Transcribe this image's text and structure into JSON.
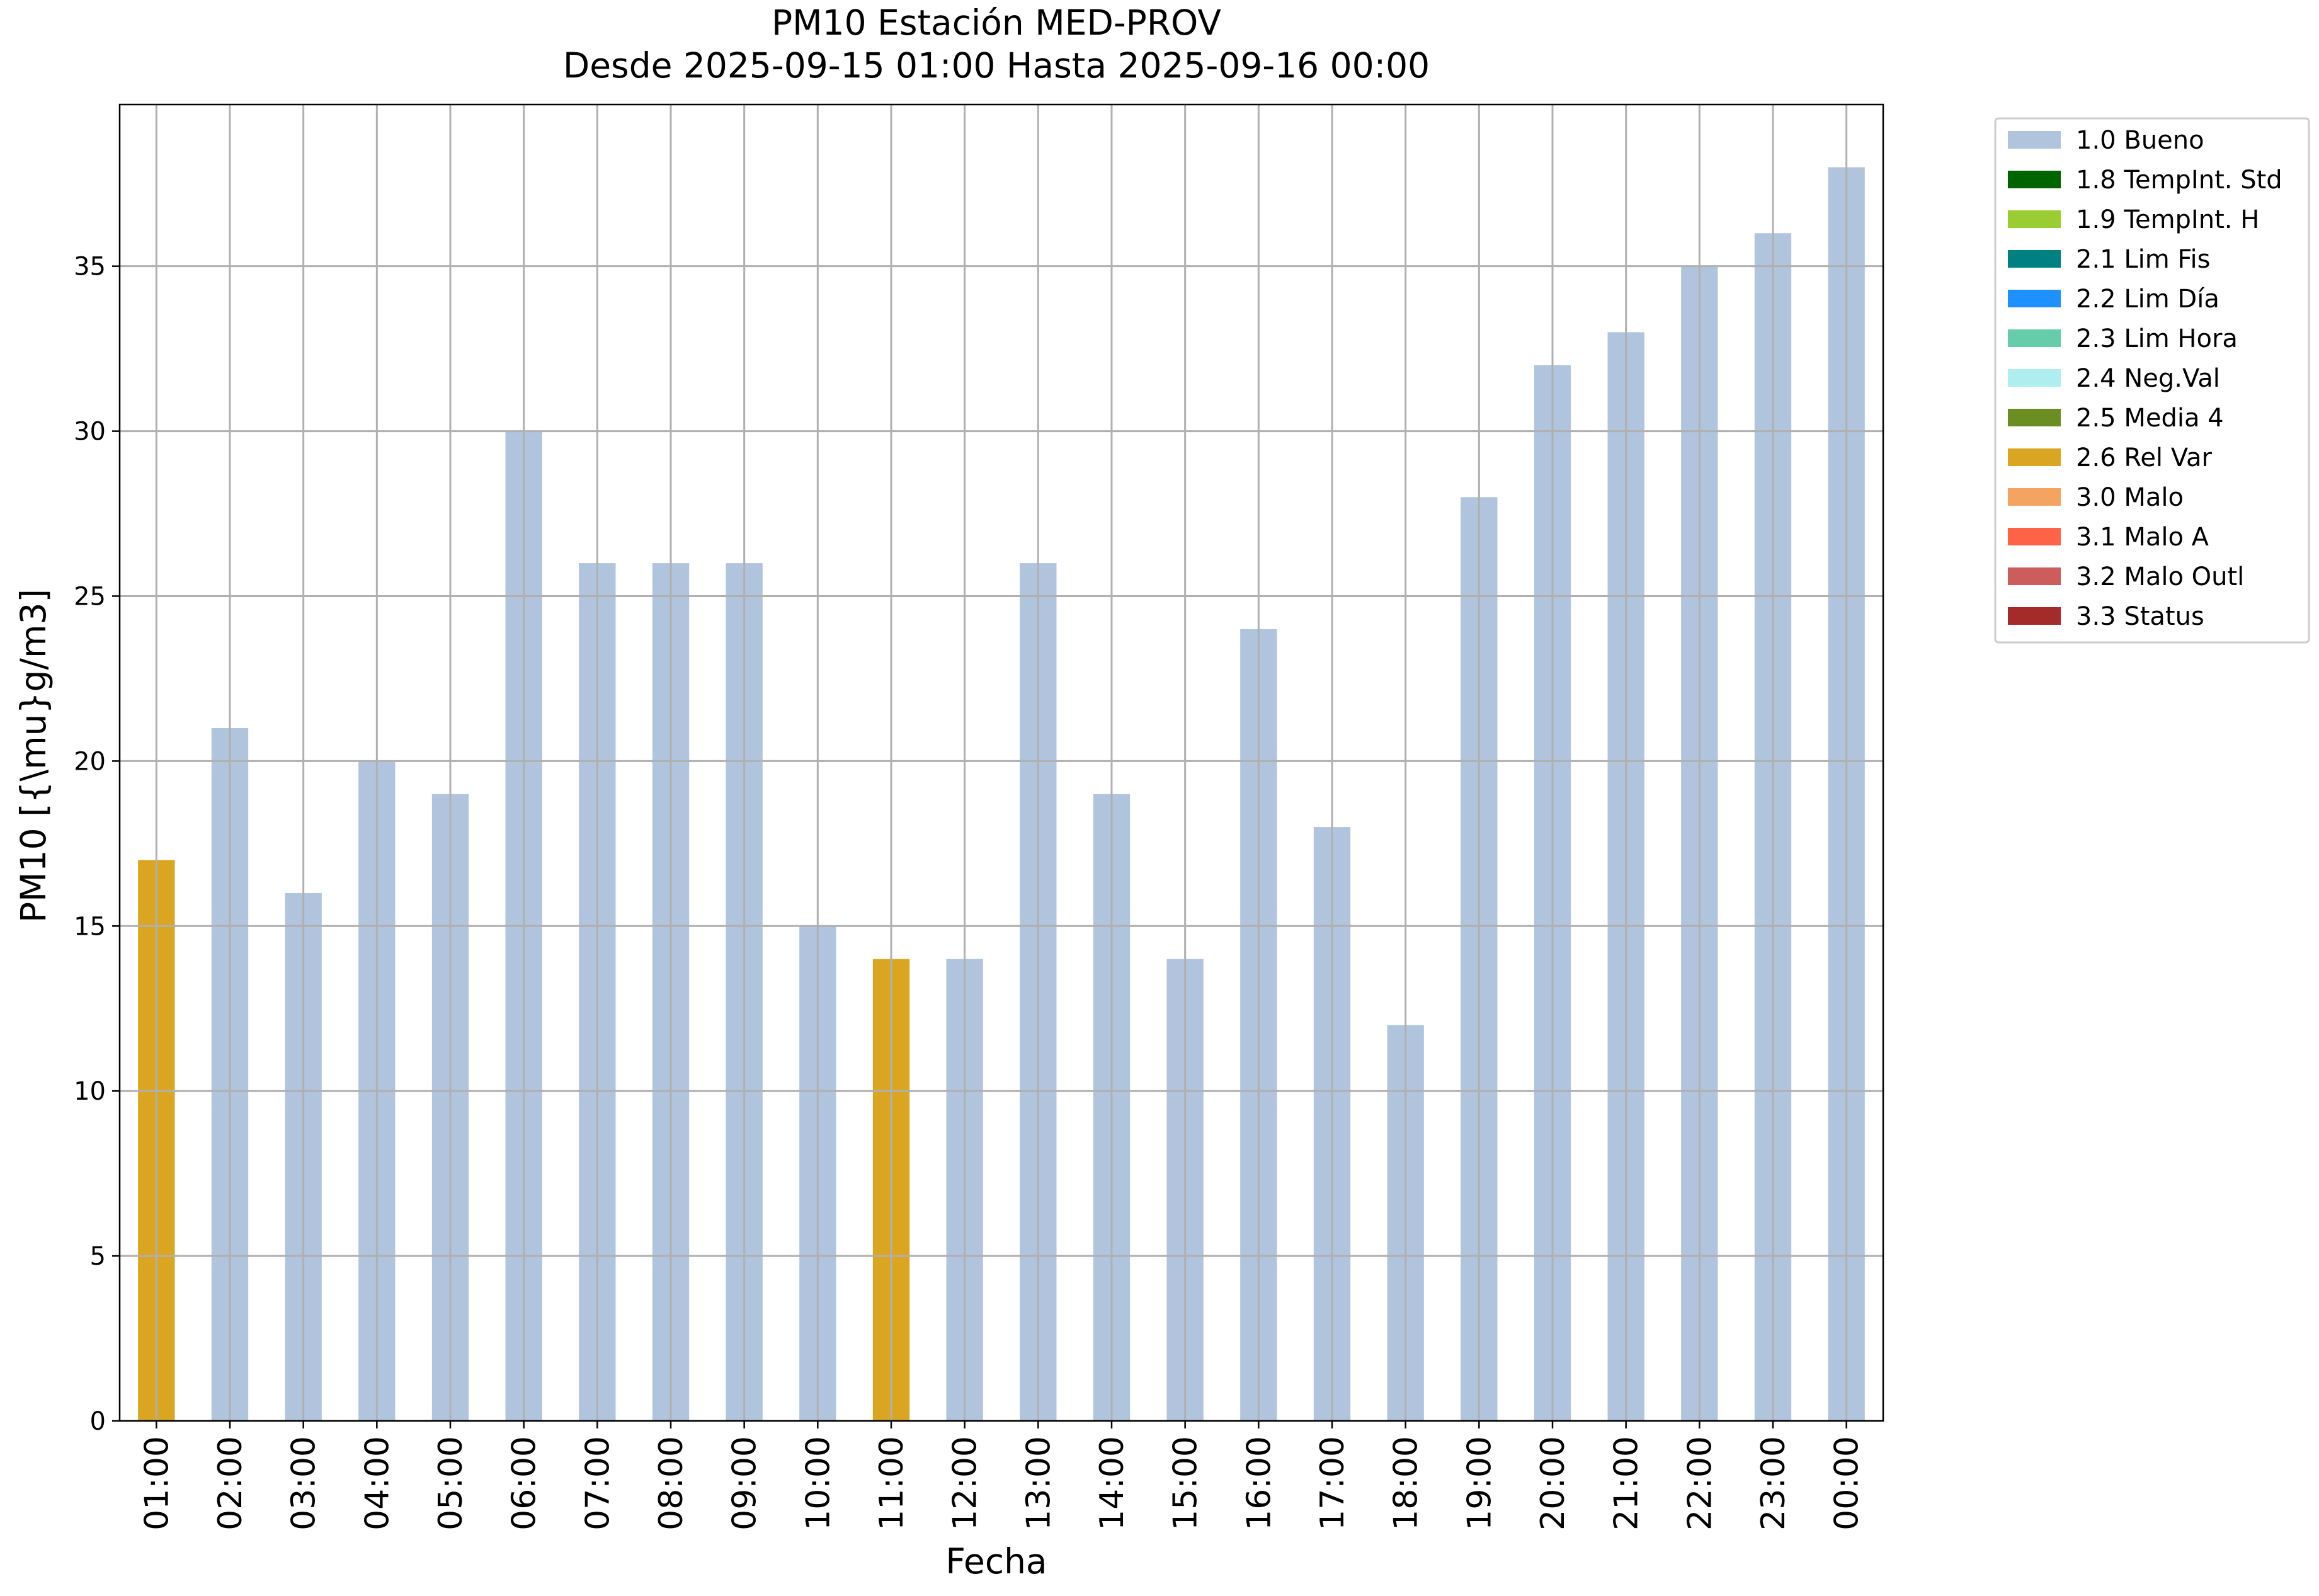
{
  "chart_data": {
    "type": "bar",
    "title": "PM10 Estación MED-PROV",
    "subtitle": "Desde 2025-09-15 01:00 Hasta 2025-09-16 00:00",
    "xlabel": "Fecha",
    "ylabel": "PM10 [{\\mu}g/m3]",
    "ylim": [
      0,
      39.9
    ],
    "yticks": [
      0,
      5,
      10,
      15,
      20,
      25,
      30,
      35
    ],
    "grid": true,
    "legend_position": "outside-top-right",
    "categories": [
      "01:00",
      "02:00",
      "03:00",
      "04:00",
      "05:00",
      "06:00",
      "07:00",
      "08:00",
      "09:00",
      "10:00",
      "11:00",
      "12:00",
      "13:00",
      "14:00",
      "15:00",
      "16:00",
      "17:00",
      "18:00",
      "19:00",
      "20:00",
      "21:00",
      "22:00",
      "23:00",
      "00:00"
    ],
    "values": [
      17,
      21,
      16,
      20,
      19,
      30,
      26,
      26,
      26,
      15,
      14,
      14,
      26,
      19,
      14,
      24,
      18,
      12,
      28,
      32,
      33,
      35,
      36,
      38
    ],
    "flags": [
      "2.6 Rel Var",
      "1.0 Bueno",
      "1.0 Bueno",
      "1.0 Bueno",
      "1.0 Bueno",
      "1.0 Bueno",
      "1.0 Bueno",
      "1.0 Bueno",
      "1.0 Bueno",
      "1.0 Bueno",
      "2.6 Rel Var",
      "1.0 Bueno",
      "1.0 Bueno",
      "1.0 Bueno",
      "1.0 Bueno",
      "1.0 Bueno",
      "1.0 Bueno",
      "1.0 Bueno",
      "1.0 Bueno",
      "1.0 Bueno",
      "1.0 Bueno",
      "1.0 Bueno",
      "1.0 Bueno",
      "1.0 Bueno"
    ],
    "legend": [
      {
        "label": "1.0 Bueno",
        "color": "#b0c4de"
      },
      {
        "label": "1.8 TempInt. Std",
        "color": "#006400"
      },
      {
        "label": "1.9 TempInt. H",
        "color": "#9acd32"
      },
      {
        "label": "2.1 Lim Fis",
        "color": "#008080"
      },
      {
        "label": "2.2 Lim Día",
        "color": "#1e90ff"
      },
      {
        "label": "2.3 Lim Hora",
        "color": "#66cdaa"
      },
      {
        "label": "2.4 Neg.Val",
        "color": "#afeeee"
      },
      {
        "label": "2.5 Media 4",
        "color": "#6b8e23"
      },
      {
        "label": "2.6 Rel Var",
        "color": "#daa520"
      },
      {
        "label": "3.0 Malo",
        "color": "#f4a460"
      },
      {
        "label": "3.1 Malo A",
        "color": "#ff6347"
      },
      {
        "label": "3.2 Malo Outl",
        "color": "#cd5c5c"
      },
      {
        "label": "3.3 Status",
        "color": "#a52a2a"
      }
    ]
  }
}
